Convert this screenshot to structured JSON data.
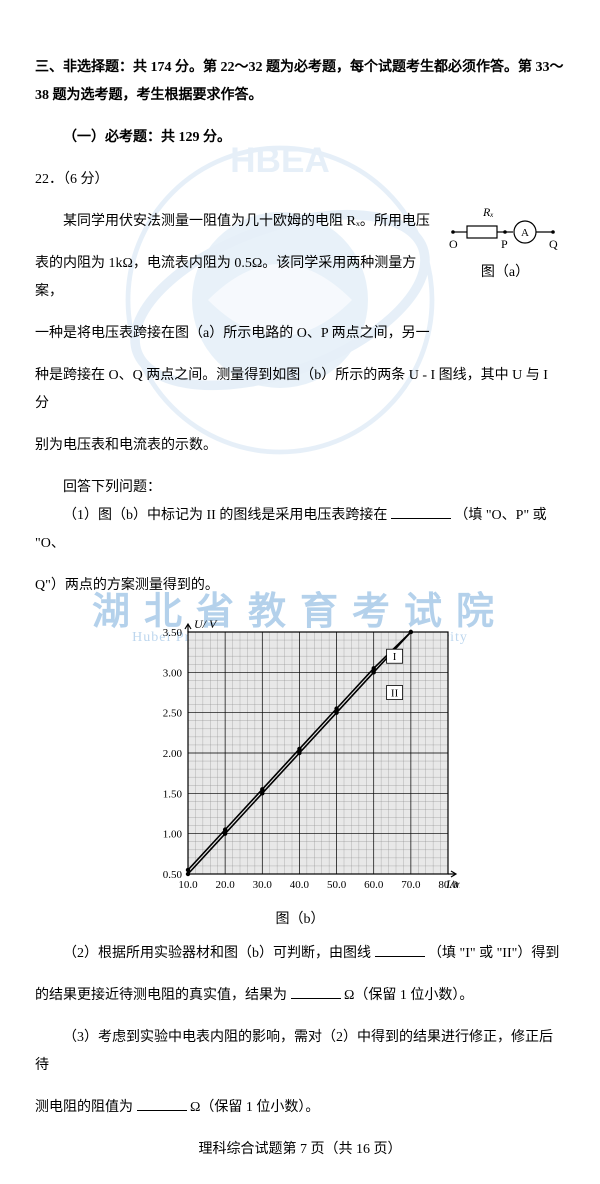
{
  "watermark": {
    "cn": "湖北省教育考试院",
    "en": "Hubei Provincial Education Examination Authority",
    "logo_letters": "HBEA",
    "color": "#5b9bd5"
  },
  "heading": {
    "section3": "三、非选择题：共 174 分。第 22～32 题为必考题，每个试题考生都必须作答。第 33～38 题为选考题，考生根据要求作答。",
    "part1": "（一）必考题：共 129 分。",
    "q22": "22．（6 分）"
  },
  "body": {
    "p1": "某同学用伏安法测量一阻值为几十欧姆的电阻 Rₓ。所用电压",
    "p2": "表的内阻为 1kΩ，电流表内阻为 0.5Ω。该同学采用两种测量方案，",
    "p3": "一种是将电压表跨接在图（a）所示电路的 O、P 两点之间，另一",
    "p4": "种是跨接在 O、Q 两点之间。测量得到如图（b）所示的两条 U - I 图线，其中 U 与 I 分",
    "p5": "别为电压表和电流表的示数。",
    "answer": "回答下列问题：",
    "q1a": "（1）图（b）中标记为 II 的图线是采用电压表跨接在",
    "q1b": "（填 \"O、P\" 或 \"O、",
    "q1c": "Q\"）两点的方案测量得到的。",
    "q2a": "（2）根据所用实验器材和图（b）可判断，由图线",
    "q2b": "（填 \"I\" 或 \"II\"）得到",
    "q2c": "的结果更接近待测电阻的真实值，结果为",
    "q2d": "Ω（保留 1 位小数）。",
    "q3a": "（3）考虑到实验中电表内阻的影响，需对（2）中得到的结果进行修正，修正后待",
    "q3b": "测电阻的阻值为",
    "q3c": "Ω（保留 1 位小数）。"
  },
  "circuit": {
    "label_Rx": "Rₓ",
    "label_A": "A",
    "label_O": "O",
    "label_P": "P",
    "label_Q": "Q",
    "caption": "图（a）"
  },
  "chart": {
    "caption": "图（b）",
    "ylabel": "U/ V",
    "xlabel": "I/mA",
    "x_min": 10.0,
    "x_max": 80.0,
    "y_min": 0.5,
    "y_max": 3.5,
    "x_ticks": [
      "10.0",
      "20.0",
      "30.0",
      "40.0",
      "50.0",
      "60.0",
      "70.0",
      "80.0"
    ],
    "y_ticks": [
      "0.50",
      "1.00",
      "1.50",
      "2.00",
      "2.50",
      "3.00",
      "3.50"
    ],
    "plot_bg": "#e8e8e8",
    "major_grid": "#000000",
    "minor_grid": "#888888",
    "axis_color": "#000000",
    "line_color": "#000000",
    "marker_label_I": "I",
    "marker_label_II": "II",
    "series_I": [
      [
        10,
        0.55
      ],
      [
        20,
        1.05
      ],
      [
        30,
        1.55
      ],
      [
        40,
        2.05
      ],
      [
        50,
        2.55
      ],
      [
        60,
        3.05
      ],
      [
        70,
        3.5
      ]
    ],
    "series_II": [
      [
        10,
        0.5
      ],
      [
        20,
        1.0
      ],
      [
        30,
        1.5
      ],
      [
        40,
        2.0
      ],
      [
        50,
        2.5
      ],
      [
        60,
        3.0
      ],
      [
        70,
        3.5
      ]
    ],
    "label_I_pos": [
      64,
      3.15
    ],
    "label_II_pos": [
      64,
      2.7
    ]
  },
  "footer": "理科综合试题第 7 页（共 16 页）"
}
